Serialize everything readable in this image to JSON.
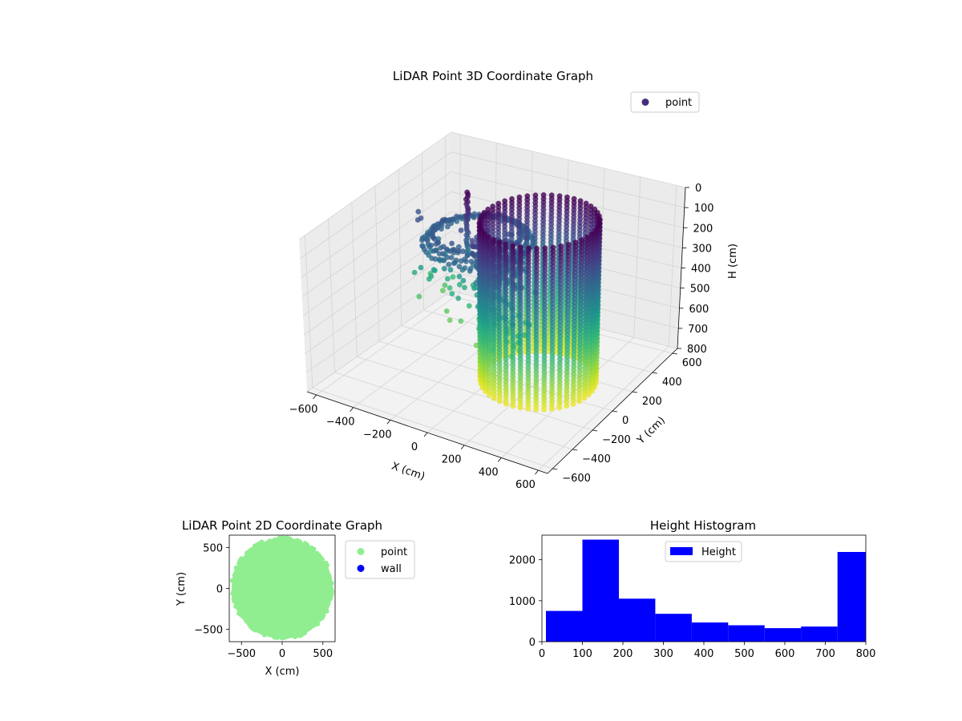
{
  "chart_data": [
    {
      "type": "scatter",
      "title": "LiDAR Point 3D Coordinate Graph",
      "xlabel": "X (cm)",
      "ylabel": "Y (cm)",
      "zlabel": "H (cm)",
      "xlim": [
        -650,
        650
      ],
      "ylim": [
        -650,
        650
      ],
      "zlim": [
        800,
        0
      ],
      "x_ticks": [
        "−600",
        "−400",
        "−200",
        "0",
        "200",
        "400",
        "600"
      ],
      "y_ticks": [
        "−600",
        "−400",
        "−200",
        "0",
        "200",
        "400",
        "600"
      ],
      "z_ticks": [
        "0",
        "100",
        "200",
        "300",
        "400",
        "500",
        "600",
        "700",
        "800"
      ],
      "z_axis_inverted": true,
      "colormap": "viridis (color by height)",
      "legend": [
        {
          "label": "point",
          "color": "#472d7b"
        }
      ],
      "legend_position": "top-right",
      "grid": true,
      "structures": {
        "wall_ring": {
          "center": [
            220,
            30
          ],
          "radius": 280,
          "h_range": [
            0,
            780
          ]
        },
        "inner_ring": {
          "center": [
            -220,
            200
          ],
          "radius": 260,
          "h_top": 260
        },
        "stairs": {
          "from": [
            -500,
            250
          ],
          "to": [
            200,
            -120
          ],
          "h_range": [
            200,
            650
          ]
        },
        "vertical_lines": [
          {
            "xy": [
              -240,
              140
            ],
            "h_range": [
              0,
              320
            ]
          },
          {
            "xy": [
              -20,
              -80
            ],
            "h_range": [
              380,
              800
            ]
          }
        ]
      }
    },
    {
      "type": "scatter",
      "title": "LiDAR Point 2D Coordinate Graph",
      "xlabel": "X (cm)",
      "ylabel": "Y (cm)",
      "xlim": [
        -650,
        650
      ],
      "ylim": [
        -650,
        650
      ],
      "x_ticks": [
        "−500",
        "0",
        "500"
      ],
      "y_ticks": [
        "−500",
        "0",
        "500"
      ],
      "series": [
        {
          "name": "point",
          "color": "#90ee90",
          "shape": "filled disc",
          "center": [
            0,
            0
          ],
          "radius": 620
        },
        {
          "name": "wall",
          "color": "#0000ff",
          "values": []
        }
      ],
      "legend_position": "outside-right"
    },
    {
      "type": "bar",
      "title": "Height Histogram",
      "xlim": [
        0,
        800
      ],
      "ylim": [
        0,
        2600
      ],
      "x_ticks": [
        "0",
        "100",
        "200",
        "300",
        "400",
        "500",
        "600",
        "700",
        "800"
      ],
      "y_ticks": [
        "0",
        "1000",
        "2000"
      ],
      "bin_edges": [
        10,
        100,
        190,
        280,
        370,
        460,
        550,
        640,
        730,
        800
      ],
      "values": [
        750,
        2490,
        1050,
        680,
        470,
        400,
        330,
        370,
        2190
      ],
      "color": "#0000ff",
      "legend": [
        {
          "label": "Height",
          "color": "#0000ff"
        }
      ],
      "legend_position": "top-center"
    }
  ]
}
